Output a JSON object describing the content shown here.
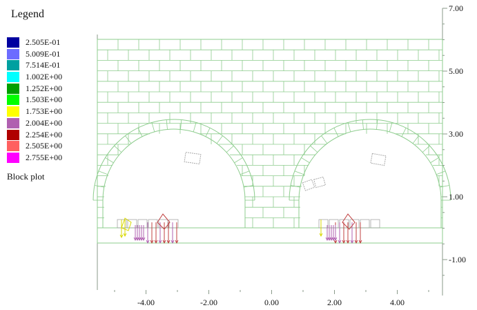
{
  "legend": {
    "title": "Legend",
    "items": [
      {
        "label": "2.505E-01",
        "color": "#0000a0"
      },
      {
        "label": "5.009E-01",
        "color": "#6c6cff"
      },
      {
        "label": "7.514E-01",
        "color": "#00a0a0"
      },
      {
        "label": "1.002E+00",
        "color": "#00ffff"
      },
      {
        "label": "1.252E+00",
        "color": "#00a000"
      },
      {
        "label": "1.503E+00",
        "color": "#00ff00"
      },
      {
        "label": "1.753E+00",
        "color": "#ffff00"
      },
      {
        "label": "2.004E+00",
        "color": "#b060b0"
      },
      {
        "label": "2.254E+00",
        "color": "#b00000"
      },
      {
        "label": "2.505E+00",
        "color": "#ff6060"
      },
      {
        "label": "2.755E+00",
        "color": "#ff00ff"
      }
    ]
  },
  "block_plot_label": "Block plot",
  "colors": {
    "block_outline": "#8ccc8c",
    "axis": "#8a9a8a",
    "vector_main": "#c04040",
    "vector_secondary": "#b060b0",
    "vector_alt": "#d8d800"
  },
  "chart_data": {
    "type": "block plot",
    "x_ticks": [
      "-4.00",
      "-2.00",
      "0.00",
      "2.00",
      "4.00"
    ],
    "y_ticks": [
      "7.00",
      "5.00",
      "3.00",
      "1.00",
      "-1.00"
    ],
    "x_tick_values": [
      -4,
      -2,
      0,
      2,
      4
    ],
    "y_tick_values": [
      7,
      5,
      3,
      1,
      -1
    ],
    "xlim": [
      -5.5,
      5.5
    ],
    "ylim": [
      -2,
      7
    ]
  }
}
